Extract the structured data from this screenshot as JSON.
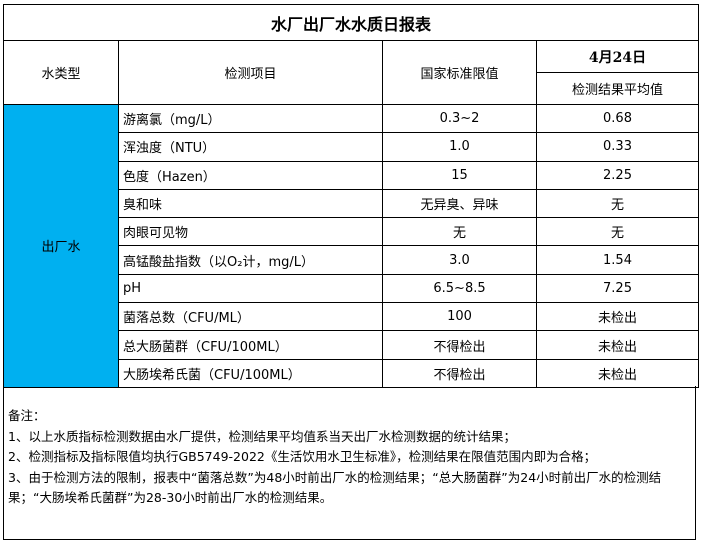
{
  "title": "水厂出厂水水质日报表",
  "headers": {
    "water_type": "水类型",
    "item": "检测项目",
    "standard": "国家标准限值",
    "date": "4月24日",
    "result": "检测结果平均值"
  },
  "water_type": "出厂水",
  "rows": [
    {
      "item": "游离氯（mg/L）",
      "standard": "0.3~2",
      "result": "0.68"
    },
    {
      "item": "浑浊度（NTU）",
      "standard": "1.0",
      "result": "0.33"
    },
    {
      "item": "色度（Hazen）",
      "standard": "15",
      "result": "2.25"
    },
    {
      "item": "臭和味",
      "standard": "无异臭、异味",
      "result": "无"
    },
    {
      "item": "肉眼可见物",
      "standard": "无",
      "result": "无"
    },
    {
      "item": "高锰酸盐指数（以O₂计，mg/L）",
      "standard": "3.0",
      "result": "1.54"
    },
    {
      "item": "pH",
      "standard": "6.5~8.5",
      "result": "7.25"
    },
    {
      "item": "菌落总数（CFU/ML）",
      "standard": "100",
      "result": "未检出"
    },
    {
      "item": "总大肠菌群（CFU/100ML）",
      "standard": "不得检出",
      "result": "未检出"
    },
    {
      "item": "大肠埃希氏菌（CFU/100ML）",
      "standard": "不得检出",
      "result": "未检出"
    }
  ],
  "notes": [
    "备注：",
    "1、以上水质指标检测数据由水厂提供，检测结果平均值系当天出厂水检测数据的统计结果；",
    "2、检测指标及指标限值均执行GB5749-2022《生活饮用水卫生标准》，检测结果在限值范围内即为合格；",
    "3、由于检测方法的限制，报表中“菌落总数”为48小时前出厂水的检测结果；“总大肠菌群”为24小时前出厂水的检测结果；“大肠埃希氏菌群”为28-30小时前出厂水的检测结果。"
  ],
  "colors": {
    "water_type_bg": "#00b0f0"
  }
}
